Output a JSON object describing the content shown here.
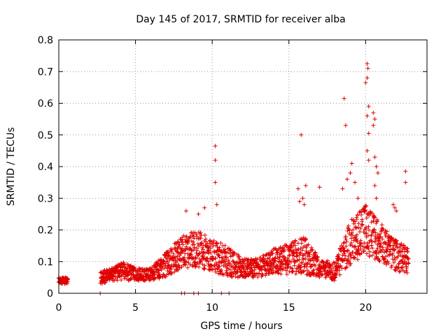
{
  "chart_data": {
    "type": "scatter",
    "title": "Day 145 of 2017, SRMTID for receiver alba",
    "xlabel": "GPS time / hours",
    "ylabel": "SRMTID / TECUs",
    "xlim": [
      0,
      24
    ],
    "ylim": [
      0,
      0.8
    ],
    "xticks": [
      0,
      5,
      10,
      15,
      20
    ],
    "xtick_labels": [
      "0",
      "5",
      "10",
      "15",
      "20"
    ],
    "yticks": [
      0,
      0.1,
      0.2,
      0.3,
      0.4,
      0.5,
      0.6,
      0.7,
      0.8
    ],
    "ytick_labels": [
      "0",
      "0.1",
      "0.2",
      "0.3",
      "0.4",
      "0.5",
      "0.6",
      "0.7",
      "0.8"
    ],
    "grid": true,
    "marker": "+",
    "color": "#e00000",
    "series": [
      {
        "name": "SRMTID",
        "envelope": [
          [
            0.0,
            0.04,
            0.01
          ],
          [
            0.5,
            0.04,
            0.01
          ],
          [
            2.8,
            0.05,
            0.02
          ],
          [
            3.5,
            0.06,
            0.02
          ],
          [
            4.2,
            0.07,
            0.03
          ],
          [
            5.0,
            0.06,
            0.02
          ],
          [
            6.0,
            0.06,
            0.02
          ],
          [
            7.0,
            0.09,
            0.04
          ],
          [
            8.0,
            0.13,
            0.05
          ],
          [
            9.0,
            0.14,
            0.06
          ],
          [
            10.0,
            0.12,
            0.05
          ],
          [
            11.0,
            0.1,
            0.05
          ],
          [
            12.0,
            0.08,
            0.03
          ],
          [
            13.0,
            0.08,
            0.03
          ],
          [
            14.0,
            0.1,
            0.04
          ],
          [
            15.0,
            0.11,
            0.05
          ],
          [
            16.0,
            0.12,
            0.06
          ],
          [
            17.0,
            0.08,
            0.03
          ],
          [
            18.0,
            0.07,
            0.03
          ],
          [
            19.0,
            0.16,
            0.07
          ],
          [
            20.0,
            0.2,
            0.08
          ],
          [
            21.0,
            0.16,
            0.06
          ],
          [
            22.0,
            0.12,
            0.05
          ],
          [
            22.8,
            0.1,
            0.04
          ]
        ],
        "gaps": [
          [
            0.6,
            2.7
          ]
        ],
        "points": [
          [
            10.2,
            0.465
          ],
          [
            10.2,
            0.42
          ],
          [
            10.2,
            0.35
          ],
          [
            15.8,
            0.5
          ],
          [
            18.6,
            0.615
          ],
          [
            18.7,
            0.53
          ],
          [
            20.1,
            0.725
          ],
          [
            20.15,
            0.71
          ],
          [
            20.1,
            0.68
          ],
          [
            20.0,
            0.665
          ],
          [
            20.2,
            0.59
          ],
          [
            20.1,
            0.56
          ],
          [
            20.2,
            0.505
          ],
          [
            20.5,
            0.57
          ],
          [
            20.6,
            0.55
          ],
          [
            20.5,
            0.53
          ],
          [
            20.1,
            0.45
          ],
          [
            20.2,
            0.42
          ],
          [
            20.6,
            0.43
          ],
          [
            20.7,
            0.4
          ],
          [
            20.8,
            0.38
          ],
          [
            20.6,
            0.34
          ],
          [
            20.7,
            0.3
          ],
          [
            19.1,
            0.41
          ],
          [
            19.0,
            0.38
          ],
          [
            19.3,
            0.35
          ],
          [
            19.5,
            0.3
          ],
          [
            18.8,
            0.36
          ],
          [
            18.5,
            0.33
          ],
          [
            22.6,
            0.385
          ],
          [
            22.6,
            0.35
          ],
          [
            17.0,
            0.335
          ],
          [
            16.1,
            0.34
          ],
          [
            15.6,
            0.33
          ],
          [
            15.9,
            0.3
          ],
          [
            16.0,
            0.28
          ],
          [
            15.7,
            0.29
          ],
          [
            9.5,
            0.27
          ],
          [
            9.1,
            0.25
          ],
          [
            8.3,
            0.26
          ],
          [
            10.3,
            0.28
          ],
          [
            21.8,
            0.28
          ],
          [
            21.9,
            0.27
          ],
          [
            22.0,
            0.26
          ],
          [
            8.0,
            0.0
          ],
          [
            8.2,
            0.0
          ],
          [
            8.8,
            0.0
          ],
          [
            9.1,
            0.0
          ],
          [
            10.6,
            0.0
          ],
          [
            11.1,
            0.0
          ],
          [
            2.7,
            0.0
          ]
        ]
      }
    ]
  }
}
